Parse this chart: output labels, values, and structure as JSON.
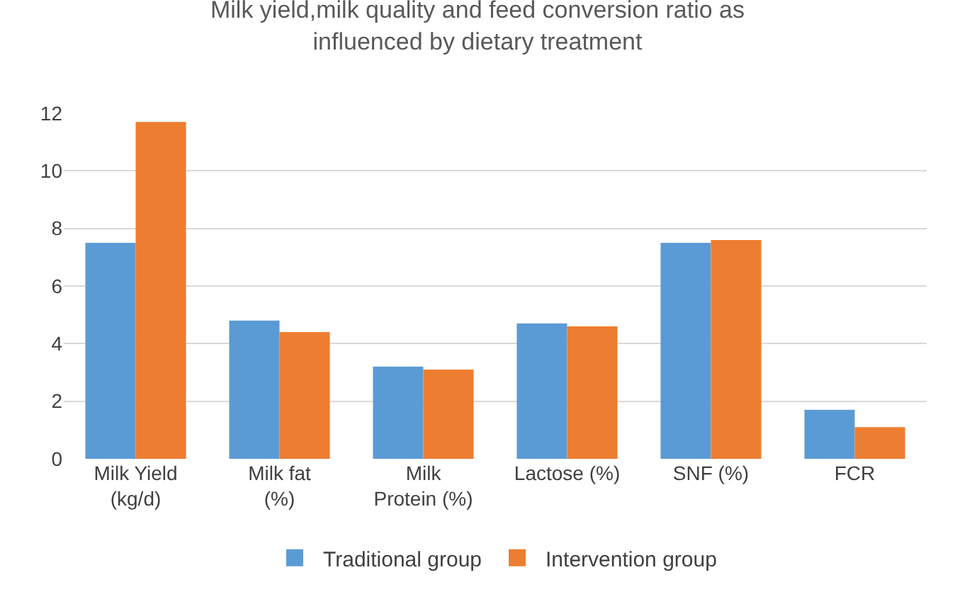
{
  "chart_data": {
    "type": "bar",
    "title": "Milk yield,milk quality and feed conversion ratio as influenced by dietary treatment",
    "categories": [
      "Milk Yield (kg/d)",
      "Milk fat (%)",
      "Milk Protein (%)",
      "Lactose (%)",
      "SNF (%)",
      "FCR"
    ],
    "series": [
      {
        "name": "Traditional group",
        "color": "#5b9bd5",
        "values": [
          7.5,
          4.8,
          3.2,
          4.7,
          7.5,
          1.7
        ]
      },
      {
        "name": "Intervention group",
        "color": "#ed7d31",
        "values": [
          11.7,
          4.4,
          3.1,
          4.6,
          7.6,
          1.1
        ]
      }
    ],
    "ylim": [
      0,
      12
    ],
    "yticks": [
      0,
      2,
      4,
      6,
      8,
      10,
      12
    ],
    "grid": "y",
    "legend": "bottom"
  }
}
